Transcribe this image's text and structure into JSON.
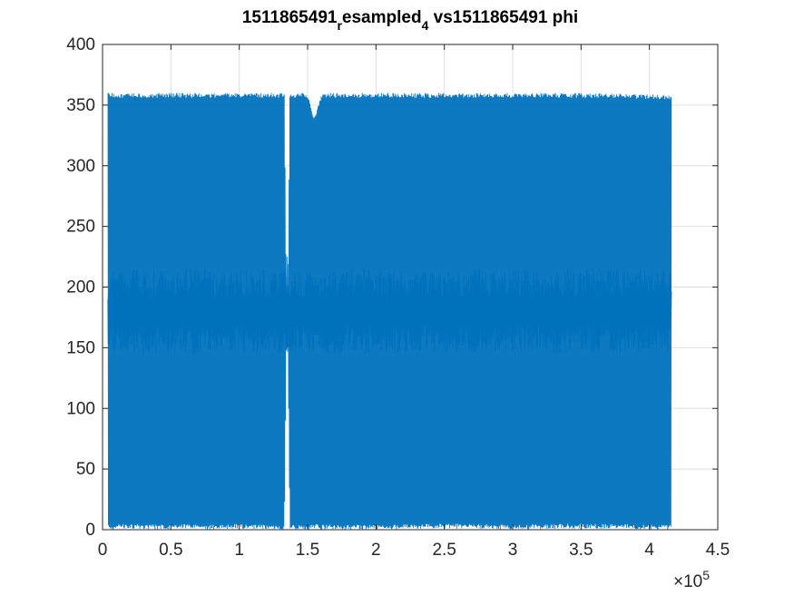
{
  "chart_data": {
    "type": "line",
    "title": {
      "part1": "1511865491",
      "sub1": "r",
      "part2": "esampled",
      "sub2": "4",
      "part3": " vs1511865491 phi"
    },
    "xlabel": "",
    "ylabel": "",
    "xlim": [
      0,
      450000
    ],
    "ylim": [
      0,
      400
    ],
    "x_exponent_label": {
      "base": "×10",
      "exponent": "5"
    },
    "x_ticks": [
      {
        "value": 0,
        "label": "0"
      },
      {
        "value": 50000,
        "label": "0.5"
      },
      {
        "value": 100000,
        "label": "1"
      },
      {
        "value": 150000,
        "label": "1.5"
      },
      {
        "value": 200000,
        "label": "2"
      },
      {
        "value": 250000,
        "label": "2.5"
      },
      {
        "value": 300000,
        "label": "3"
      },
      {
        "value": 350000,
        "label": "3.5"
      },
      {
        "value": 400000,
        "label": "4"
      },
      {
        "value": 450000,
        "label": "4.5"
      }
    ],
    "y_ticks": [
      {
        "value": 0,
        "label": "0"
      },
      {
        "value": 50,
        "label": "50"
      },
      {
        "value": 100,
        "label": "100"
      },
      {
        "value": 150,
        "label": "150"
      },
      {
        "value": 200,
        "label": "200"
      },
      {
        "value": 250,
        "label": "250"
      },
      {
        "value": 300,
        "label": "300"
      },
      {
        "value": 350,
        "label": "350"
      },
      {
        "value": 400,
        "label": "400"
      }
    ],
    "grid": true,
    "series": [
      {
        "color": "#0072BD",
        "x_range": [
          4000,
          416000
        ],
        "y_range": [
          0,
          360
        ],
        "description_points": {
          "x": [
            4000,
            20000,
            40000,
            60000,
            80000,
            100000,
            120000,
            133000,
            135000,
            137000,
            150000,
            155000,
            160000,
            200000,
            250000,
            300000,
            350000,
            400000,
            416000
          ],
          "y_max": [
            360,
            360,
            360,
            360,
            360,
            360,
            360,
            360,
            120,
            360,
            360,
            340,
            360,
            360,
            360,
            360,
            360,
            359,
            358
          ],
          "y_min": [
            0,
            1,
            0,
            1,
            0,
            1,
            0,
            0,
            230,
            0,
            0,
            1,
            0,
            0,
            1,
            0,
            1,
            0,
            0
          ]
        }
      }
    ]
  }
}
